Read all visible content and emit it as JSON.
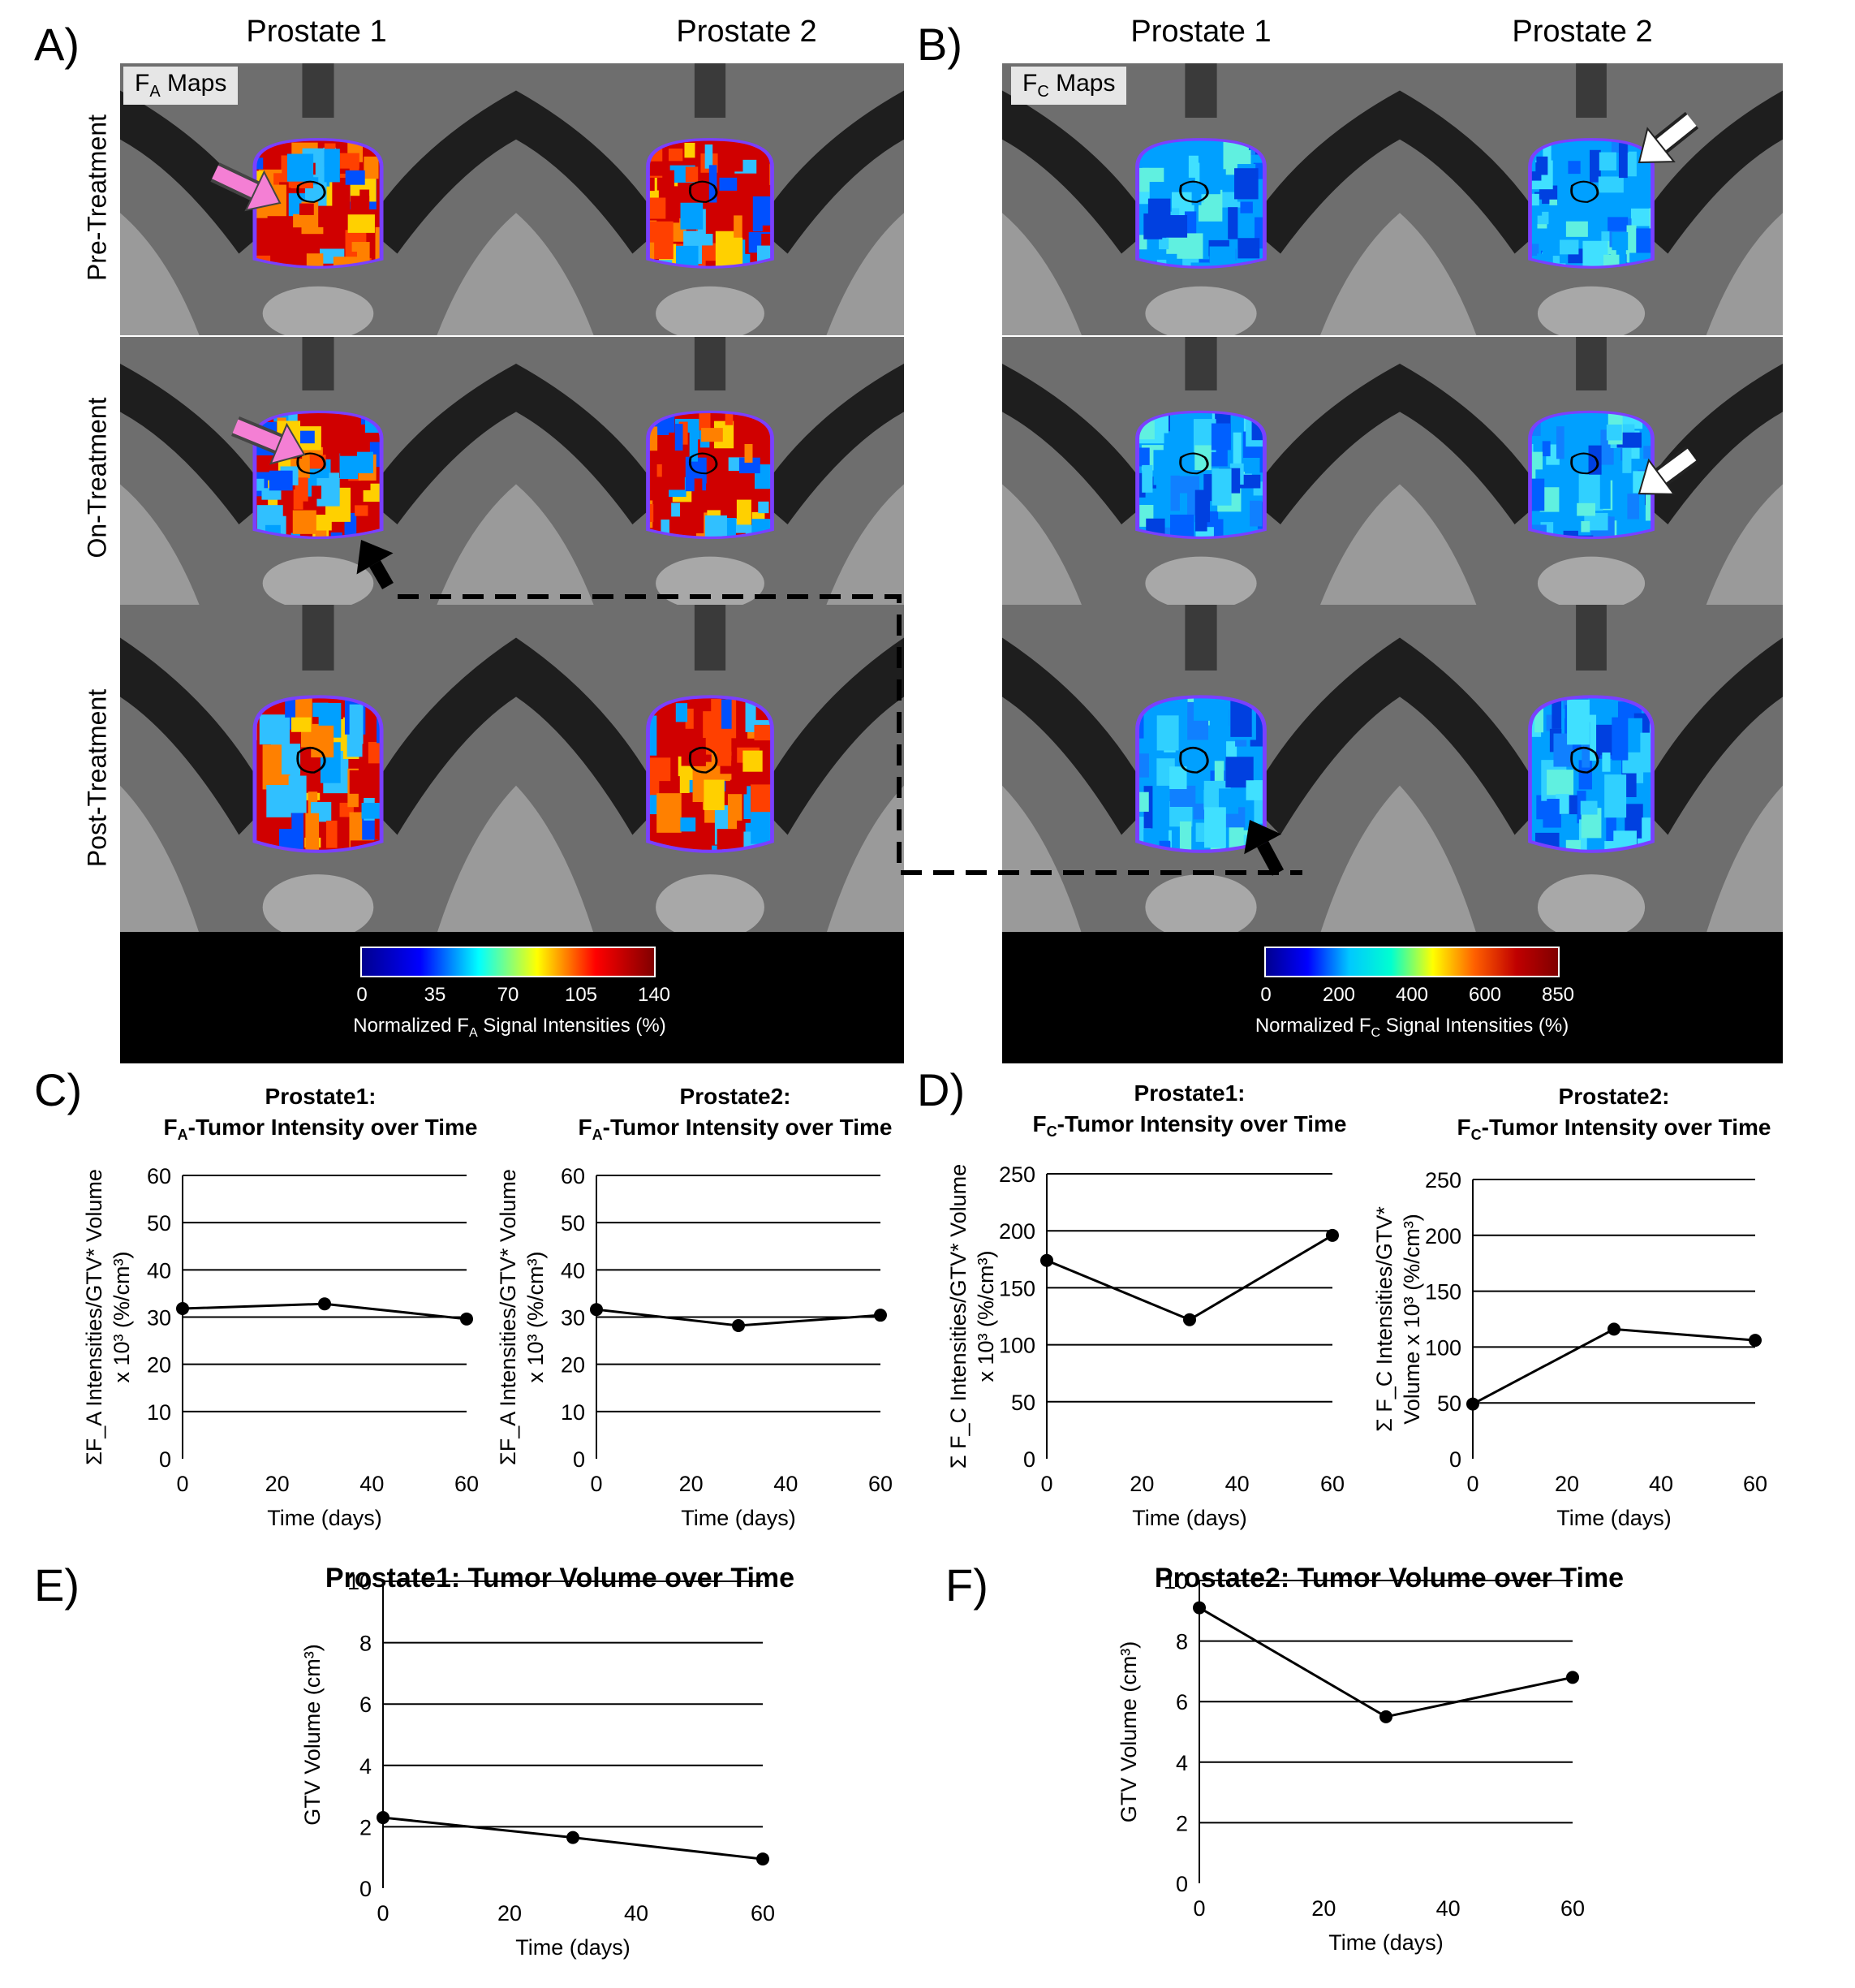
{
  "panels": {
    "A": {
      "label": "A)",
      "map_label": "F",
      "map_label_sub": "A",
      "map_label_rest": " Maps"
    },
    "B": {
      "label": "B)",
      "map_label": "F",
      "map_label_sub": "C",
      "map_label_rest": " Maps"
    },
    "C": {
      "label": "C)"
    },
    "D": {
      "label": "D)"
    },
    "E": {
      "label": "E)"
    },
    "F": {
      "label": "F)"
    }
  },
  "columns": [
    "Prostate 1",
    "Prostate 2"
  ],
  "rows": [
    "Pre-Treatment",
    "On-Treatment",
    "Post-Treatment"
  ],
  "colorbars": {
    "A": {
      "ticks": [
        "0",
        "35",
        "70",
        "105",
        "140"
      ],
      "title_pre": "Normalized F",
      "title_sub": "A",
      "title_post": " Signal Intensities (%)"
    },
    "B": {
      "ticks": [
        "0",
        "200",
        "400",
        "600",
        "850"
      ],
      "title_pre": "Normalized F",
      "title_sub": "C",
      "title_post": " Signal Intensities (%)"
    }
  },
  "colors": {
    "colormap": [
      "#00008f",
      "#0000ff",
      "#00ffff",
      "#ffff00",
      "#ff0000",
      "#800000"
    ],
    "pink_arrow": "#f47fd4"
  },
  "chart_data": [
    {
      "id": "C1",
      "type": "line",
      "title_line1": "Prostate1:",
      "title_line2_pre": "F",
      "title_line2_sub": "A",
      "title_line2_post": "-Tumor Intensity over Time",
      "ylabel_line1": "ΣF_A Intensities/GTV* Volume",
      "ylabel_line2": "x 10³ (%/cm³)",
      "xlabel": "Time (days)",
      "x": [
        0,
        30,
        60
      ],
      "y": [
        31.8,
        32.8,
        29.6
      ],
      "xlim": [
        0,
        60
      ],
      "ylim": [
        0,
        60
      ],
      "xticks": [
        0,
        20,
        40,
        60
      ],
      "yticks": [
        0,
        10,
        20,
        30,
        40,
        50,
        60
      ]
    },
    {
      "id": "C2",
      "type": "line",
      "title_line1": "Prostate2:",
      "title_line2_pre": "F",
      "title_line2_sub": "A",
      "title_line2_post": "-Tumor Intensity over Time",
      "ylabel_line1": "ΣF_A Intensities/GTV* Volume",
      "ylabel_line2": "x 10³ (%/cm³)",
      "xlabel": "Time (days)",
      "x": [
        0,
        30,
        60
      ],
      "y": [
        31.6,
        28.2,
        30.4
      ],
      "xlim": [
        0,
        60
      ],
      "ylim": [
        0,
        60
      ],
      "xticks": [
        0,
        20,
        40,
        60
      ],
      "yticks": [
        0,
        10,
        20,
        30,
        40,
        50,
        60
      ]
    },
    {
      "id": "D1",
      "type": "line",
      "title_line1": "Prostate1:",
      "title_line2_pre": "F",
      "title_line2_sub": "C",
      "title_line2_post": "-Tumor Intensity over Time",
      "ylabel_line1": "Σ F_C Intensities/GTV* Volume",
      "ylabel_line2": "x 10³ (%/cm³)",
      "xlabel": "Time (days)",
      "x": [
        0,
        30,
        60
      ],
      "y": [
        174,
        122,
        196
      ],
      "xlim": [
        0,
        60
      ],
      "ylim": [
        0,
        250
      ],
      "xticks": [
        0,
        20,
        40,
        60
      ],
      "yticks": [
        0,
        50,
        100,
        150,
        200,
        250
      ]
    },
    {
      "id": "D2",
      "type": "line",
      "title_line1": "Prostate2:",
      "title_line2_pre": "F",
      "title_line2_sub": "C",
      "title_line2_post": "-Tumor Intensity over Time",
      "ylabel_line1": "Σ F_C Intensities/GTV*",
      "ylabel_line2": "Volume x 10³ (%/cm³)",
      "xlabel": "Time (days)",
      "x": [
        0,
        30,
        60
      ],
      "y": [
        49,
        116,
        106
      ],
      "xlim": [
        0,
        60
      ],
      "ylim": [
        0,
        250
      ],
      "xticks": [
        0,
        20,
        40,
        60
      ],
      "yticks": [
        0,
        50,
        100,
        150,
        200,
        250
      ]
    },
    {
      "id": "E",
      "type": "line",
      "title_line1": "Prostate1: Tumor Volume over Time",
      "ylabel_line1": "GTV Volume (cm³)",
      "xlabel": "Time (days)",
      "x": [
        0,
        30,
        60
      ],
      "y": [
        2.3,
        1.65,
        0.95
      ],
      "xlim": [
        0,
        60
      ],
      "ylim": [
        0,
        10
      ],
      "xticks": [
        0,
        20,
        40,
        60
      ],
      "yticks": [
        0,
        2,
        4,
        6,
        8,
        10
      ]
    },
    {
      "id": "F",
      "type": "line",
      "title_line1": "Prostate2: Tumor Volume over Time",
      "ylabel_line1": "GTV Volume (cm³)",
      "xlabel": "Time (days)",
      "x": [
        0,
        30,
        60
      ],
      "y": [
        9.1,
        5.5,
        6.8
      ],
      "xlim": [
        0,
        60
      ],
      "ylim": [
        0,
        10
      ],
      "xticks": [
        0,
        20,
        40,
        60
      ],
      "yticks": [
        0,
        2,
        4,
        6,
        8,
        10
      ]
    }
  ]
}
